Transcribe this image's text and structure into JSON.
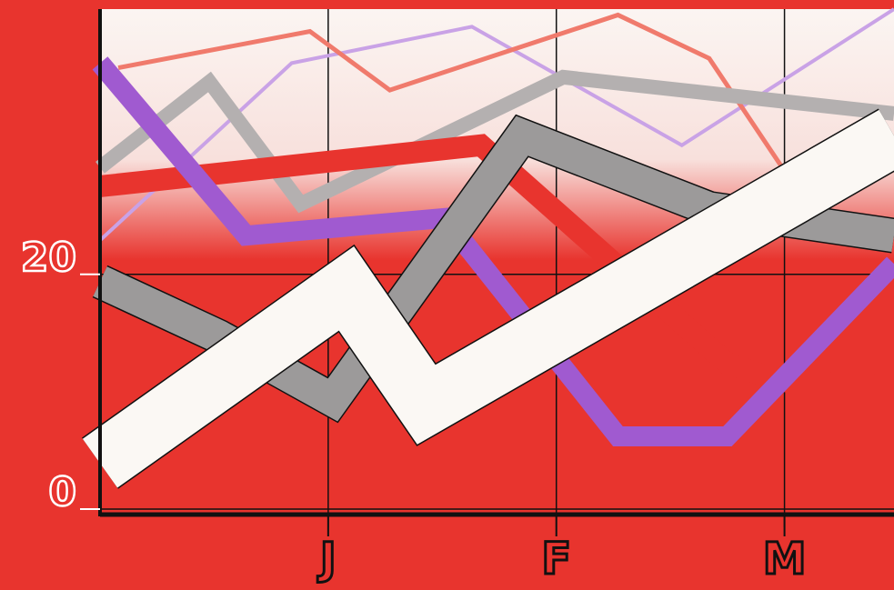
{
  "chart_data": {
    "type": "line",
    "xlim": [
      0,
      3.48
    ],
    "xticks": [
      {
        "value": 1,
        "label": "J"
      },
      {
        "value": 2,
        "label": "F"
      },
      {
        "value": 3,
        "label": "M"
      }
    ],
    "ylim": [
      0,
      42.6
    ],
    "yticks": [
      0,
      20
    ],
    "grid": true,
    "series": [
      {
        "color": "#c9a2e6",
        "x": [
          0,
          0.84,
          1.63,
          2.55,
          3.48
        ],
        "values": [
          22.9,
          38,
          41.1,
          31,
          42.6
        ]
      },
      {
        "color": "#f07a6c",
        "x": [
          0.08,
          0.92,
          1.27,
          2.27,
          2.67,
          2.99
        ],
        "values": [
          37.6,
          40.7,
          35.7,
          42.1,
          38.4,
          29.1
        ]
      },
      {
        "color": "#b4b0b0",
        "x": [
          0,
          0.48,
          0.88,
          2.03,
          3.48
        ],
        "values": [
          29.1,
          36.4,
          26,
          36.8,
          33.7
        ]
      },
      {
        "color": "#e8342e",
        "x": [
          0,
          1.67,
          2.75,
          2.99,
          3.48
        ],
        "values": [
          27.5,
          31,
          12.4,
          10.9,
          10.5
        ]
      },
      {
        "color": "#a05ad0",
        "x": [
          0,
          0.64,
          1.51,
          2.27,
          2.75,
          3.48
        ],
        "values": [
          38,
          23.3,
          24.8,
          6.2,
          6.2,
          20.9
        ]
      },
      {
        "color": "#9c9a9a",
        "x": [
          0,
          0.52,
          1.02,
          1.85,
          2.67,
          3.48
        ],
        "values": [
          19.4,
          14.7,
          9.3,
          31.8,
          25.6,
          23.3
        ]
      },
      {
        "color": "#fbf8f4",
        "x": [
          0,
          1.08,
          1.43,
          3.48
        ],
        "values": [
          3.9,
          18.8,
          8.9,
          31.8
        ]
      }
    ]
  }
}
